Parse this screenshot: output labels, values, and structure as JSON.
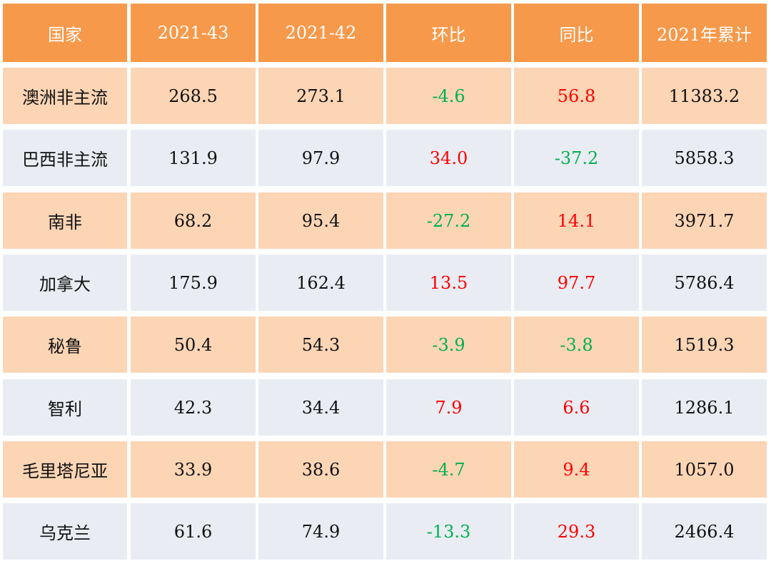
{
  "colors": {
    "header_bg": "#F7994A",
    "header_text": "#FFFFFF",
    "row_odd_bg": "#FCD5B5",
    "row_even_bg": "#E9EDF3",
    "neutral_text": "#111111",
    "positive_text": "#FF0000",
    "negative_text": "#00B050"
  },
  "chart_data": {
    "type": "table",
    "columns": [
      "国家",
      "2021-43",
      "2021-42",
      "环比",
      "同比",
      "2021年累计"
    ],
    "rows": [
      [
        "澳洲非主流",
        "268.5",
        "273.1",
        "-4.6",
        "56.8",
        "11383.2"
      ],
      [
        "巴西非主流",
        "131.9",
        "97.9",
        "34.0",
        "-37.2",
        "5858.3"
      ],
      [
        "南非",
        "68.2",
        "95.4",
        "-27.2",
        "14.1",
        "3971.7"
      ],
      [
        "加拿大",
        "175.9",
        "162.4",
        "13.5",
        "97.7",
        "5786.4"
      ],
      [
        "秘鲁",
        "50.4",
        "54.3",
        "-3.9",
        "-3.8",
        "1519.3"
      ],
      [
        "智利",
        "42.3",
        "34.4",
        "7.9",
        "6.6",
        "1286.1"
      ],
      [
        "毛里塔尼亚",
        "33.9",
        "38.6",
        "-4.7",
        "9.4",
        "1057.0"
      ],
      [
        "乌克兰",
        "61.6",
        "74.9",
        "-13.3",
        "29.3",
        "2466.4"
      ]
    ]
  }
}
